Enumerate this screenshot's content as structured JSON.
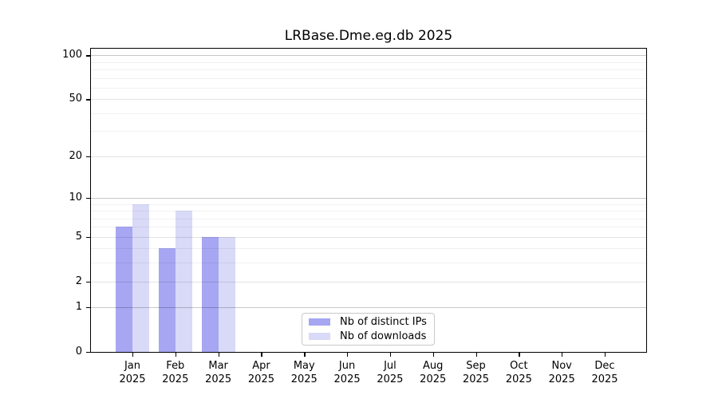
{
  "figure": {
    "title": "LRBase.Dme.eg.db 2025"
  },
  "chart_data": {
    "type": "bar",
    "title": "LRBase.Dme.eg.db 2025",
    "x": [
      {
        "m": "Jan",
        "y": "2025"
      },
      {
        "m": "Feb",
        "y": "2025"
      },
      {
        "m": "Mar",
        "y": "2025"
      },
      {
        "m": "Apr",
        "y": "2025"
      },
      {
        "m": "May",
        "y": "2025"
      },
      {
        "m": "Jun",
        "y": "2025"
      },
      {
        "m": "Jul",
        "y": "2025"
      },
      {
        "m": "Aug",
        "y": "2025"
      },
      {
        "m": "Sep",
        "y": "2025"
      },
      {
        "m": "Oct",
        "y": "2025"
      },
      {
        "m": "Nov",
        "y": "2025"
      },
      {
        "m": "Dec",
        "y": "2025"
      }
    ],
    "series": [
      {
        "name": "Nb of distinct IPs",
        "color": "#a6a6f2",
        "values": [
          6,
          4,
          5,
          0,
          0,
          0,
          0,
          0,
          0,
          0,
          0,
          0
        ]
      },
      {
        "name": "Nb of downloads",
        "color": "#d9d9f8",
        "values": [
          9,
          8,
          5,
          0,
          0,
          0,
          0,
          0,
          0,
          0,
          0,
          0
        ]
      }
    ],
    "y_axis": {
      "scale": "log10(1+y)",
      "ticks": [
        0,
        1,
        2,
        5,
        10,
        20,
        50,
        100
      ],
      "decade_ticks": [
        1,
        10,
        100
      ],
      "minor_ticks": [
        3,
        4,
        6,
        7,
        8,
        9,
        30,
        40,
        60,
        70,
        80,
        90
      ],
      "max": 111
    },
    "grid": "horizontal",
    "legend_position": "lower center"
  }
}
